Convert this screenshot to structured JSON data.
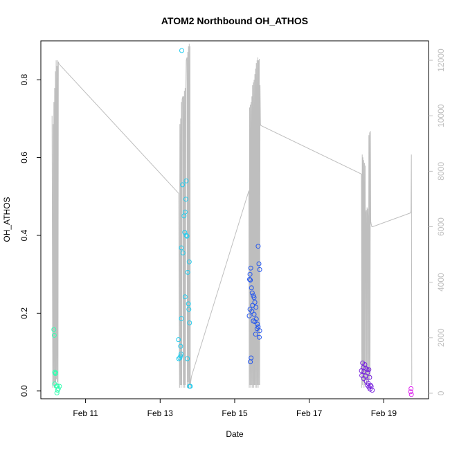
{
  "chart_data": {
    "type": "scatter",
    "title": "ATOM2 Northbound OH_ATHOS",
    "xlabel": "Date",
    "ylabel": "OH_ATHOS",
    "x_ticks": [
      "Feb 11",
      "Feb 13",
      "Feb 15",
      "Feb 17",
      "Feb 19"
    ],
    "x_tick_days": [
      11,
      13,
      15,
      17,
      19
    ],
    "xlim_days": [
      9.8,
      20.2
    ],
    "y_ticks": [
      0.0,
      0.2,
      0.4,
      0.6,
      0.8
    ],
    "y_tick_labels": [
      "0.0",
      "0.2",
      "0.4",
      "0.6",
      "0.8"
    ],
    "ylim": [
      -0.02,
      0.9
    ],
    "y2_ticks": [
      0,
      2000,
      4000,
      6000,
      8000,
      10000,
      12000
    ],
    "y2_tick_labels": [
      "0",
      "2000",
      "4000",
      "6000",
      "8000",
      "10000",
      "12000"
    ],
    "y2lim": [
      -200,
      12700
    ],
    "grid": false,
    "points": [
      {
        "x": 10.15,
        "y": 0.158,
        "color": "#33ffb0"
      },
      {
        "x": 10.16,
        "y": 0.143,
        "color": "#33ffb0"
      },
      {
        "x": 10.17,
        "y": 0.048,
        "color": "#33ffb0"
      },
      {
        "x": 10.19,
        "y": 0.045,
        "color": "#33ffb0"
      },
      {
        "x": 10.2,
        "y": 0.047,
        "color": "#33ffb0"
      },
      {
        "x": 10.17,
        "y": 0.018,
        "color": "#33ffb0"
      },
      {
        "x": 10.22,
        "y": 0.012,
        "color": "#33ffb0"
      },
      {
        "x": 10.24,
        "y": 0.013,
        "color": "#33ffb0"
      },
      {
        "x": 10.25,
        "y": 0.002,
        "color": "#33ffb0"
      },
      {
        "x": 10.27,
        "y": 0.006,
        "color": "#33ffb0"
      },
      {
        "x": 10.23,
        "y": -0.005,
        "color": "#33ffb0"
      },
      {
        "x": 10.3,
        "y": 0.012,
        "color": "#33ffb0"
      },
      {
        "x": 13.58,
        "y": 0.875,
        "color": "#22ccee"
      },
      {
        "x": 13.7,
        "y": 0.54,
        "color": "#22ccee"
      },
      {
        "x": 13.6,
        "y": 0.53,
        "color": "#22ccee"
      },
      {
        "x": 13.69,
        "y": 0.493,
        "color": "#22ccee"
      },
      {
        "x": 13.67,
        "y": 0.46,
        "color": "#22ccee"
      },
      {
        "x": 13.64,
        "y": 0.45,
        "color": "#22ccee"
      },
      {
        "x": 13.66,
        "y": 0.408,
        "color": "#22ccee"
      },
      {
        "x": 13.7,
        "y": 0.4,
        "color": "#22ccee"
      },
      {
        "x": 13.72,
        "y": 0.398,
        "color": "#22ccee"
      },
      {
        "x": 13.57,
        "y": 0.368,
        "color": "#22ccee"
      },
      {
        "x": 13.61,
        "y": 0.355,
        "color": "#22ccee"
      },
      {
        "x": 13.78,
        "y": 0.332,
        "color": "#22ccee"
      },
      {
        "x": 13.74,
        "y": 0.305,
        "color": "#22ccee"
      },
      {
        "x": 13.67,
        "y": 0.242,
        "color": "#22ccee"
      },
      {
        "x": 13.76,
        "y": 0.224,
        "color": "#22ccee"
      },
      {
        "x": 13.77,
        "y": 0.21,
        "color": "#22ccee"
      },
      {
        "x": 13.57,
        "y": 0.186,
        "color": "#22ccee"
      },
      {
        "x": 13.79,
        "y": 0.175,
        "color": "#22ccee"
      },
      {
        "x": 13.49,
        "y": 0.132,
        "color": "#22ccee"
      },
      {
        "x": 13.55,
        "y": 0.115,
        "color": "#22ccee"
      },
      {
        "x": 13.56,
        "y": 0.095,
        "color": "#22ccee"
      },
      {
        "x": 13.55,
        "y": 0.09,
        "color": "#22ccee"
      },
      {
        "x": 13.53,
        "y": 0.085,
        "color": "#22ccee"
      },
      {
        "x": 13.5,
        "y": 0.083,
        "color": "#22ccee"
      },
      {
        "x": 13.73,
        "y": 0.083,
        "color": "#22ccee"
      },
      {
        "x": 13.79,
        "y": 0.012,
        "color": "#22ccee"
      },
      {
        "x": 13.81,
        "y": 0.012,
        "color": "#22ccee"
      },
      {
        "x": 15.63,
        "y": 0.372,
        "color": "#2255ee"
      },
      {
        "x": 15.65,
        "y": 0.327,
        "color": "#2255ee"
      },
      {
        "x": 15.43,
        "y": 0.316,
        "color": "#2255ee"
      },
      {
        "x": 15.67,
        "y": 0.312,
        "color": "#2255ee"
      },
      {
        "x": 15.41,
        "y": 0.3,
        "color": "#2255ee"
      },
      {
        "x": 15.4,
        "y": 0.287,
        "color": "#2255ee"
      },
      {
        "x": 15.42,
        "y": 0.285,
        "color": "#2255ee"
      },
      {
        "x": 15.45,
        "y": 0.265,
        "color": "#2255ee"
      },
      {
        "x": 15.47,
        "y": 0.252,
        "color": "#2255ee"
      },
      {
        "x": 15.5,
        "y": 0.245,
        "color": "#2255ee"
      },
      {
        "x": 15.52,
        "y": 0.24,
        "color": "#2255ee"
      },
      {
        "x": 15.54,
        "y": 0.228,
        "color": "#2255ee"
      },
      {
        "x": 15.48,
        "y": 0.22,
        "color": "#2255ee"
      },
      {
        "x": 15.57,
        "y": 0.215,
        "color": "#2255ee"
      },
      {
        "x": 15.41,
        "y": 0.21,
        "color": "#2255ee"
      },
      {
        "x": 15.46,
        "y": 0.205,
        "color": "#2255ee"
      },
      {
        "x": 15.52,
        "y": 0.197,
        "color": "#2255ee"
      },
      {
        "x": 15.39,
        "y": 0.193,
        "color": "#2255ee"
      },
      {
        "x": 15.58,
        "y": 0.185,
        "color": "#2255ee"
      },
      {
        "x": 15.5,
        "y": 0.18,
        "color": "#2255ee"
      },
      {
        "x": 15.54,
        "y": 0.178,
        "color": "#2255ee"
      },
      {
        "x": 15.61,
        "y": 0.172,
        "color": "#2255ee"
      },
      {
        "x": 15.63,
        "y": 0.165,
        "color": "#2255ee"
      },
      {
        "x": 15.6,
        "y": 0.16,
        "color": "#2255ee"
      },
      {
        "x": 15.67,
        "y": 0.155,
        "color": "#2255ee"
      },
      {
        "x": 15.56,
        "y": 0.146,
        "color": "#2255ee"
      },
      {
        "x": 15.66,
        "y": 0.138,
        "color": "#2255ee"
      },
      {
        "x": 15.44,
        "y": 0.085,
        "color": "#2255ee"
      },
      {
        "x": 15.42,
        "y": 0.075,
        "color": "#2255ee"
      },
      {
        "x": 18.43,
        "y": 0.072,
        "color": "#7722dd"
      },
      {
        "x": 18.49,
        "y": 0.068,
        "color": "#7722dd"
      },
      {
        "x": 18.45,
        "y": 0.06,
        "color": "#7722dd"
      },
      {
        "x": 18.52,
        "y": 0.058,
        "color": "#7722dd"
      },
      {
        "x": 18.55,
        "y": 0.055,
        "color": "#7722dd"
      },
      {
        "x": 18.6,
        "y": 0.055,
        "color": "#7722dd"
      },
      {
        "x": 18.4,
        "y": 0.052,
        "color": "#7722dd"
      },
      {
        "x": 18.47,
        "y": 0.05,
        "color": "#7722dd"
      },
      {
        "x": 18.57,
        "y": 0.048,
        "color": "#7722dd"
      },
      {
        "x": 18.41,
        "y": 0.04,
        "color": "#7722dd"
      },
      {
        "x": 18.51,
        "y": 0.038,
        "color": "#7722dd"
      },
      {
        "x": 18.46,
        "y": 0.032,
        "color": "#7722dd"
      },
      {
        "x": 18.62,
        "y": 0.035,
        "color": "#7722dd"
      },
      {
        "x": 18.53,
        "y": 0.025,
        "color": "#7722dd"
      },
      {
        "x": 18.58,
        "y": 0.02,
        "color": "#7722dd"
      },
      {
        "x": 18.56,
        "y": 0.015,
        "color": "#7722dd"
      },
      {
        "x": 18.64,
        "y": 0.015,
        "color": "#7722dd"
      },
      {
        "x": 18.6,
        "y": 0.01,
        "color": "#7722dd"
      },
      {
        "x": 18.66,
        "y": 0.012,
        "color": "#7722dd"
      },
      {
        "x": 18.63,
        "y": 0.005,
        "color": "#7722dd"
      },
      {
        "x": 18.69,
        "y": 0.002,
        "color": "#7722dd"
      },
      {
        "x": 19.73,
        "y": 0.006,
        "color": "#dd22ee"
      },
      {
        "x": 19.72,
        "y": -0.002,
        "color": "#dd22ee"
      },
      {
        "x": 19.74,
        "y": -0.009,
        "color": "#dd22ee"
      }
    ],
    "line_series": {
      "axis": "right",
      "color": "#bebebe",
      "x": [
        10.1,
        10.12,
        10.13,
        10.14,
        10.15,
        10.16,
        10.17,
        10.18,
        10.19,
        10.2,
        10.21,
        10.22,
        10.23,
        10.24,
        10.25,
        10.26,
        10.27,
        10.28,
        10.29,
        10.3,
        13.5,
        13.52,
        13.53,
        13.54,
        13.55,
        13.56,
        13.57,
        13.58,
        13.59,
        13.6,
        13.61,
        13.62,
        13.63,
        13.64,
        13.65,
        13.66,
        13.67,
        13.68,
        13.69,
        13.7,
        13.72,
        13.73,
        13.74,
        13.75,
        13.76,
        13.77,
        13.78,
        13.79,
        13.8,
        13.81,
        13.82,
        13.83,
        13.84,
        15.38,
        15.39,
        15.4,
        15.41,
        15.42,
        15.43,
        15.44,
        15.45,
        15.46,
        15.47,
        15.48,
        15.49,
        15.5,
        15.51,
        15.52,
        15.53,
        15.54,
        15.55,
        15.56,
        15.57,
        15.58,
        15.59,
        15.6,
        15.61,
        15.62,
        15.63,
        15.64,
        15.65,
        15.66,
        15.67,
        15.68,
        15.69,
        15.7,
        18.4,
        18.41,
        18.42,
        18.43,
        18.44,
        18.45,
        18.46,
        18.47,
        18.48,
        18.49,
        18.5,
        18.51,
        18.52,
        18.53,
        18.54,
        18.55,
        18.56,
        18.57,
        18.58,
        18.59,
        18.6,
        18.61,
        18.62,
        18.63,
        18.64,
        18.65,
        18.66,
        18.67,
        18.68,
        18.69,
        18.7,
        19.72,
        19.73,
        19.74,
        19.75
      ],
      "y": [
        10000,
        200,
        9700,
        300,
        10500,
        200,
        11000,
        400,
        11600,
        300,
        12000,
        500,
        11800,
        400,
        12000,
        300,
        11950,
        11900,
        11870,
        11850,
        7200,
        200,
        9700,
        300,
        9900,
        200,
        10500,
        300,
        10600,
        10650,
        10700,
        200,
        10700,
        300,
        10900,
        200,
        11000,
        300,
        11100,
        12000,
        12100,
        200,
        12300,
        400,
        12500,
        200,
        12600,
        300,
        12500,
        200,
        400,
        500,
        600,
        7300,
        200,
        10300,
        300,
        10400,
        200,
        10500,
        300,
        10700,
        200,
        11100,
        300,
        11200,
        200,
        11300,
        300,
        11500,
        200,
        11700,
        300,
        11900,
        200,
        12000,
        300,
        12100,
        200,
        12000,
        300,
        12050,
        300,
        11100,
        9700,
        9650,
        7900,
        200,
        8600,
        300,
        8500,
        400,
        8400,
        200,
        8300,
        300,
        8200,
        500,
        6500,
        6600,
        300,
        6700,
        500,
        6650,
        6300,
        400,
        9300,
        500,
        9400,
        600,
        9450,
        6200,
        6100,
        6050,
        6000,
        6000,
        6000,
        6500,
        6600,
        8600,
        300
      ]
    }
  }
}
